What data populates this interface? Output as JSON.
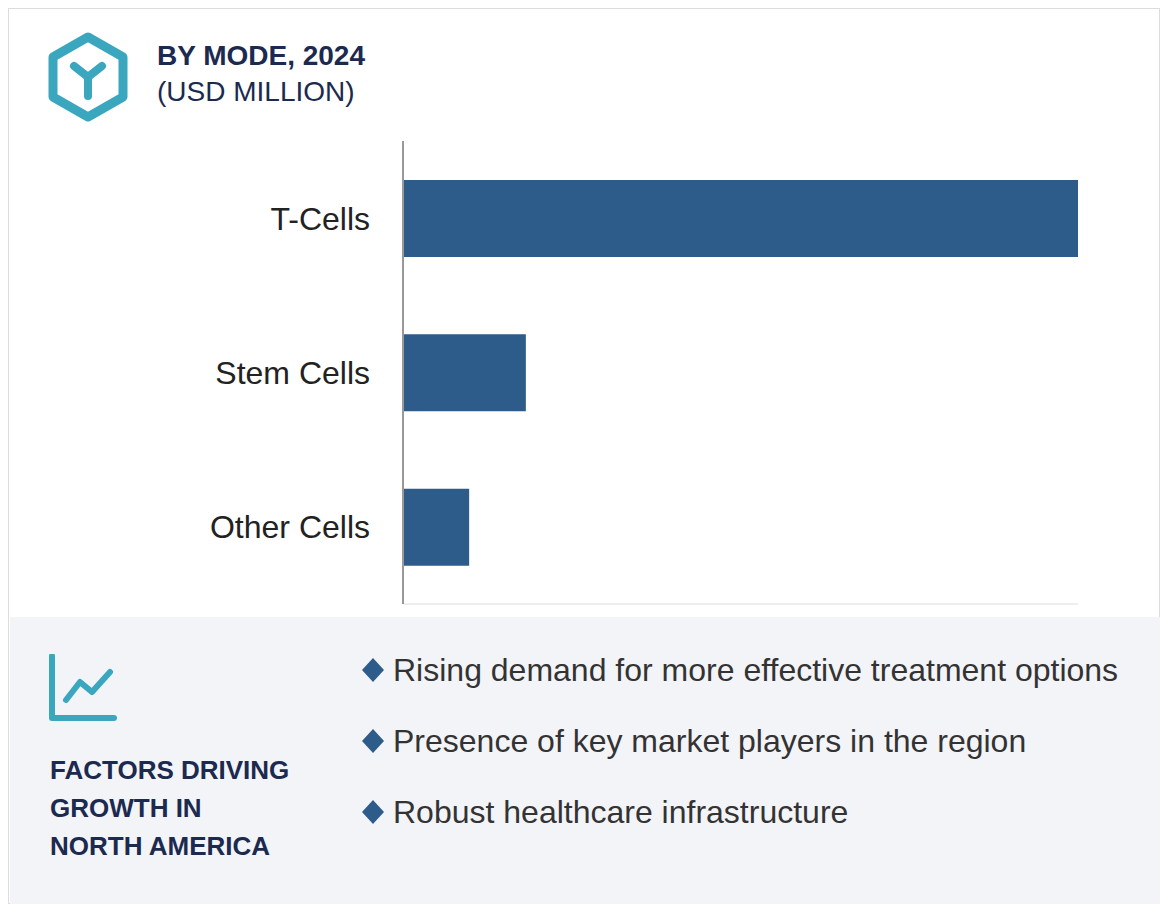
{
  "chart_data": {
    "type": "bar",
    "title": "BY MODE, 2024",
    "subtitle": "(USD MILLION)",
    "orientation": "horizontal",
    "categories": [
      "T-Cells",
      "Stem Cells",
      "Other Cells"
    ],
    "values": [
      100,
      18.2,
      9.8
    ],
    "color": "#2d5c8a",
    "xlim": [
      0,
      100
    ],
    "tick_labels": "y",
    "grid": false
  },
  "factors": {
    "title": "FACTORS DRIVING\nGROWTH IN\nNORTH AMERICA",
    "items": [
      "Rising demand for more effective treatment options",
      "Presence of key market players in the region",
      "Robust healthcare infrastructure"
    ]
  }
}
